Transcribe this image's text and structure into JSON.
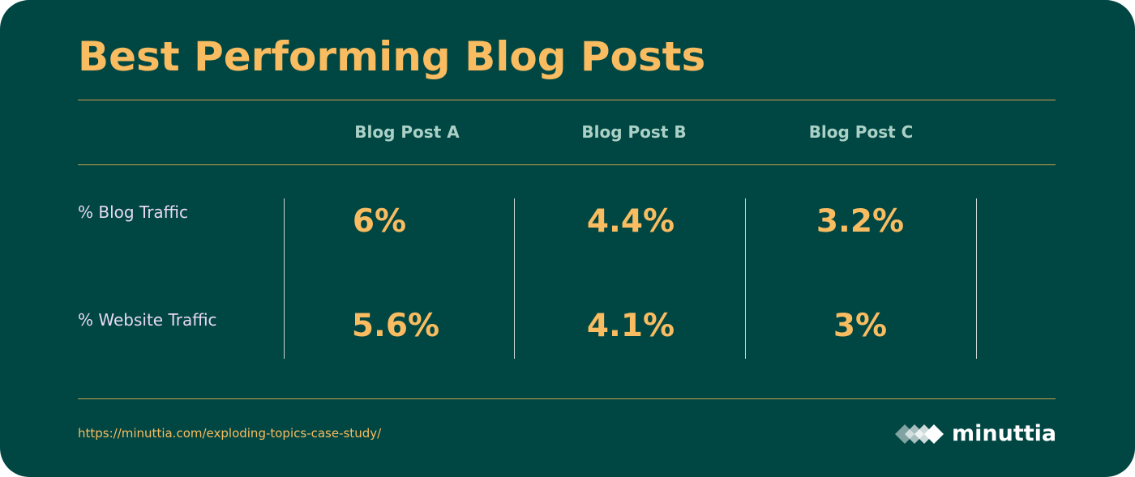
{
  "header": {
    "title": "Best Performing Blog Posts"
  },
  "chart_data": {
    "type": "table",
    "title": "Best Performing Blog Posts",
    "columns": [
      "Blog Post A",
      "Blog Post B",
      "Blog Post C"
    ],
    "rows": [
      {
        "label": "% Blog Traffic",
        "values": [
          "6%",
          "4.4%",
          "3.2%"
        ]
      },
      {
        "label": "% Website Traffic",
        "values": [
          "5.6%",
          "4.1%",
          "3%"
        ]
      }
    ]
  },
  "footer": {
    "source_url": "https://minuttia.com/exploding-topics-case-study/",
    "brand": {
      "name": "minuttia",
      "icon": "diamond-logo-icon"
    }
  },
  "colors": {
    "background": "#004643",
    "accent": "#f9bc60",
    "column_header": "#abd1c6",
    "row_label": "#e8d9f2",
    "divider": "#c8a24d"
  }
}
